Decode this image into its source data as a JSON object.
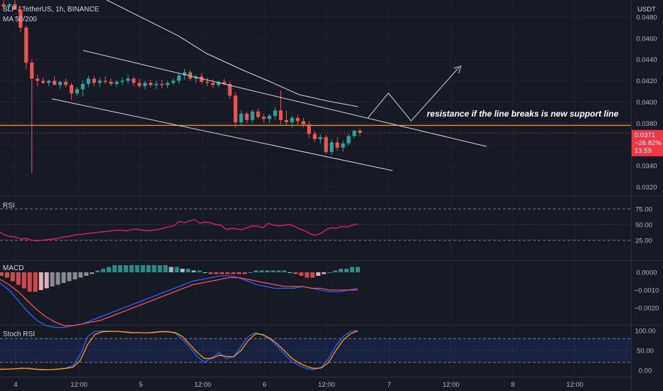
{
  "header": {
    "symbol_line": "SLP / TetherUS, 1h, BINANCE",
    "indicator": "MA 50/200",
    "currency": "USDT"
  },
  "price_axis": {
    "ticks": [
      "0.0480",
      "0.0460",
      "0.0440",
      "0.0420",
      "0.0400",
      "0.0380",
      "0.0360",
      "0.0340",
      "0.0320"
    ],
    "tick_values": [
      0.048,
      0.046,
      0.044,
      0.042,
      0.04,
      0.038,
      0.036,
      0.034,
      0.032
    ]
  },
  "last_price": {
    "price": "0.0371",
    "change": "−26.82%",
    "countdown": "13:59",
    "value": 0.0371
  },
  "annotation": {
    "text": "resistance if the line breaks is new support line",
    "level": 0.0378
  },
  "time_axis": [
    "4",
    "12:00",
    "5",
    "12:00",
    "6",
    "12:00",
    "7",
    "12:00",
    "8",
    "12:00"
  ],
  "rsi": {
    "label": "RSI",
    "ticks": [
      "75.00",
      "50.00",
      "25.00"
    ],
    "tick_values": [
      75,
      50,
      25
    ]
  },
  "macd": {
    "label": "MACD",
    "ticks": [
      "0.0000",
      "−0.0010",
      "−0.0020"
    ],
    "tick_values": [
      0,
      -0.001,
      -0.002
    ]
  },
  "stoch": {
    "label": "Stoch RSI",
    "ticks": [
      "100.00",
      "50.00",
      "0.00"
    ],
    "tick_values": [
      100,
      50,
      0
    ]
  },
  "colors": {
    "background": "#161a25",
    "up": "#26a69a",
    "down": "#ef5350",
    "rsi": "#e91e63",
    "macd": "#2962ff",
    "signal": "#ff6d00",
    "stoch_k": "#2962ff",
    "stoch_d": "#ff9800",
    "level": "#ff9800",
    "price_label": "#f23645"
  },
  "chart_data": {
    "type": "candlestick",
    "ylim": [
      0.0312,
      0.0496
    ],
    "candles_ohlc": [
      [
        0.0492,
        0.0496,
        0.0486,
        0.049
      ],
      [
        0.049,
        0.0494,
        0.0488,
        0.0492
      ],
      [
        0.0492,
        0.0498,
        0.0489,
        0.0487
      ],
      [
        0.0487,
        0.049,
        0.0466,
        0.047
      ],
      [
        0.047,
        0.0472,
        0.0431,
        0.0437
      ],
      [
        0.0437,
        0.044,
        0.0333,
        0.0422
      ],
      [
        0.0422,
        0.0426,
        0.0415,
        0.042
      ],
      [
        0.042,
        0.0423,
        0.0417,
        0.0418
      ],
      [
        0.0418,
        0.0421,
        0.0415,
        0.042
      ],
      [
        0.042,
        0.0424,
        0.0418,
        0.0416
      ],
      [
        0.0416,
        0.042,
        0.0412,
        0.0419
      ],
      [
        0.0419,
        0.0422,
        0.0414,
        0.0416
      ],
      [
        0.0416,
        0.0418,
        0.0402,
        0.0408
      ],
      [
        0.0408,
        0.0414,
        0.0406,
        0.0412
      ],
      [
        0.0412,
        0.042,
        0.0405,
        0.0417
      ],
      [
        0.0417,
        0.0425,
        0.0414,
        0.0422
      ],
      [
        0.0422,
        0.0425,
        0.0415,
        0.0418
      ],
      [
        0.0418,
        0.0423,
        0.0414,
        0.042
      ],
      [
        0.042,
        0.0424,
        0.0417,
        0.0419
      ],
      [
        0.0419,
        0.0422,
        0.0415,
        0.0417
      ],
      [
        0.0417,
        0.0421,
        0.0414,
        0.0419
      ],
      [
        0.0419,
        0.0423,
        0.0416,
        0.042
      ],
      [
        0.042,
        0.0426,
        0.0417,
        0.0422
      ],
      [
        0.0422,
        0.0424,
        0.0415,
        0.0418
      ],
      [
        0.0418,
        0.0422,
        0.0413,
        0.0415
      ],
      [
        0.0415,
        0.042,
        0.0412,
        0.0418
      ],
      [
        0.0418,
        0.0421,
        0.0414,
        0.0416
      ],
      [
        0.0416,
        0.042,
        0.0412,
        0.0417
      ],
      [
        0.0417,
        0.0421,
        0.0413,
        0.0416
      ],
      [
        0.0416,
        0.042,
        0.0413,
        0.0418
      ],
      [
        0.0418,
        0.0422,
        0.0416,
        0.042
      ],
      [
        0.042,
        0.0427,
        0.0417,
        0.0425
      ],
      [
        0.0425,
        0.0431,
        0.0421,
        0.0428
      ],
      [
        0.0428,
        0.043,
        0.042,
        0.0422
      ],
      [
        0.0422,
        0.0426,
        0.0418,
        0.0424
      ],
      [
        0.0424,
        0.0427,
        0.0417,
        0.0419
      ],
      [
        0.0419,
        0.0423,
        0.0415,
        0.0418
      ],
      [
        0.0418,
        0.0421,
        0.0413,
        0.0416
      ],
      [
        0.0416,
        0.042,
        0.0414,
        0.0419
      ],
      [
        0.0419,
        0.0422,
        0.0416,
        0.0417
      ],
      [
        0.0417,
        0.0419,
        0.0403,
        0.0406
      ],
      [
        0.0406,
        0.0409,
        0.0376,
        0.0381
      ],
      [
        0.0381,
        0.0392,
        0.0378,
        0.0389
      ],
      [
        0.0389,
        0.0391,
        0.038,
        0.0383
      ],
      [
        0.0383,
        0.0393,
        0.038,
        0.0391
      ],
      [
        0.0391,
        0.0394,
        0.0384,
        0.0386
      ],
      [
        0.0386,
        0.0389,
        0.0381,
        0.0384
      ],
      [
        0.0384,
        0.0389,
        0.038,
        0.0387
      ],
      [
        0.0387,
        0.0395,
        0.0383,
        0.0392
      ],
      [
        0.0392,
        0.0411,
        0.0379,
        0.0383
      ],
      [
        0.0383,
        0.0392,
        0.0378,
        0.0381
      ],
      [
        0.0381,
        0.0387,
        0.0376,
        0.0385
      ],
      [
        0.0385,
        0.0388,
        0.0379,
        0.0382
      ],
      [
        0.0382,
        0.0385,
        0.0376,
        0.0379
      ],
      [
        0.0379,
        0.0382,
        0.0366,
        0.037
      ],
      [
        0.037,
        0.0373,
        0.0362,
        0.0365
      ],
      [
        0.0365,
        0.037,
        0.0361,
        0.0367
      ],
      [
        0.0367,
        0.0369,
        0.0351,
        0.0353
      ],
      [
        0.0353,
        0.0365,
        0.035,
        0.0362
      ],
      [
        0.0362,
        0.0367,
        0.0354,
        0.0357
      ],
      [
        0.0357,
        0.0364,
        0.0353,
        0.0361
      ],
      [
        0.0361,
        0.037,
        0.0359,
        0.0368
      ],
      [
        0.0368,
        0.0374,
        0.0366,
        0.0373
      ],
      [
        0.0373,
        0.0375,
        0.0368,
        0.0371
      ]
    ],
    "ma50": [
      [
        0.0048,
        0.0496
      ],
      [
        0.05,
        0.0456
      ],
      [
        0.056,
        0.0392
      ],
      [
        0.07,
        0.0347
      ]
    ],
    "trendlines": [
      {
        "x1": 0.116,
        "y1": 0.0463,
        "x2": 0.698,
        "y2": 0.0365
      },
      {
        "x1": 0.078,
        "y1": 0.0402,
        "x2": 0.592,
        "y2": 0.034
      }
    ],
    "projection": [
      [
        0.558,
        0.0381
      ],
      [
        0.587,
        0.0407
      ],
      [
        0.622,
        0.0381
      ],
      [
        0.692,
        0.0434
      ]
    ],
    "rsi": [
      38,
      33,
      31,
      30,
      27,
      28,
      25,
      24,
      25,
      26,
      27,
      28,
      30,
      31,
      33,
      34,
      35,
      36,
      37,
      38,
      39,
      40,
      41,
      41,
      40,
      42,
      43,
      41,
      40,
      41,
      42,
      44,
      46,
      48,
      55,
      53,
      56,
      58,
      52,
      54,
      53,
      50,
      49,
      42,
      44,
      43,
      42,
      45,
      48,
      47,
      45,
      52,
      49,
      48,
      49,
      50,
      47,
      43,
      40,
      35,
      33,
      36,
      42,
      45,
      44,
      47,
      46,
      49,
      51
    ],
    "macd_hist": [
      -0.0002,
      -0.0003,
      -0.0005,
      -0.0007,
      -0.0009,
      -0.0011,
      -0.0011,
      -0.001,
      -0.0009,
      -0.0008,
      -0.0007,
      -0.0006,
      -0.0005,
      -0.0004,
      -0.0003,
      -0.0002,
      -0.0001,
      0.0001,
      0.0002,
      0.0003,
      0.0004,
      0.0004,
      0.0004,
      0.0004,
      0.0004,
      0.0004,
      0.0004,
      0.0004,
      0.0004,
      0.0004,
      0.0003,
      0.0003,
      0.0002,
      0.0002,
      0.0001,
      0.0001,
      0.0,
      -0.0001,
      -0.0001,
      -0.0001,
      -0.0001,
      -0.0001,
      -0.0001,
      -0.0001,
      0.0,
      0.0001,
      0.0001,
      0.0001,
      0.0001,
      0.0001,
      0.0001,
      0.0,
      -0.0001,
      -0.0002,
      -0.0003,
      -0.0003,
      -0.0002,
      -0.0001,
      0.0,
      0.0001,
      0.0002,
      0.0002,
      0.0003,
      0.0003
    ],
    "macd_line": [
      -0.0006,
      -0.001,
      -0.0016,
      -0.0022,
      -0.0027,
      -0.003,
      -0.0031,
      -0.0031,
      -0.003,
      -0.0029,
      -0.0027,
      -0.0025,
      -0.0023,
      -0.0021,
      -0.0019,
      -0.0017,
      -0.0015,
      -0.0013,
      -0.0011,
      -0.0009,
      -0.0007,
      -0.0005,
      -0.0004,
      -0.0003,
      -0.0002,
      -0.0002,
      -0.0003,
      -0.0005,
      -0.0007,
      -0.0008,
      -0.0009,
      -0.0009,
      -0.0009,
      -0.0008,
      -0.0009,
      -0.001,
      -0.0011,
      -0.0011,
      -0.001,
      -0.0009
    ],
    "signal_line": [
      -0.0004,
      -0.0007,
      -0.0011,
      -0.0016,
      -0.0021,
      -0.0025,
      -0.0028,
      -0.003,
      -0.003,
      -0.0029,
      -0.0028,
      -0.0027,
      -0.0025,
      -0.0023,
      -0.0021,
      -0.0019,
      -0.0017,
      -0.0015,
      -0.0013,
      -0.0011,
      -0.0009,
      -0.0007,
      -0.0006,
      -0.0005,
      -0.0004,
      -0.0003,
      -0.0003,
      -0.0004,
      -0.0005,
      -0.0006,
      -0.0007,
      -0.0008,
      -0.0008,
      -0.0008,
      -0.0009,
      -0.0009,
      -0.001,
      -0.001,
      -0.001,
      -0.001
    ],
    "stoch_k": [
      2,
      3,
      4,
      6,
      4,
      2,
      1,
      2,
      4,
      6,
      12,
      40,
      85,
      98,
      99,
      99,
      98,
      96,
      94,
      95,
      94,
      96,
      98,
      98,
      93,
      78,
      58,
      35,
      20,
      32,
      45,
      30,
      35,
      60,
      85,
      95,
      88,
      78,
      60,
      40,
      22,
      12,
      5,
      2,
      8,
      30,
      62,
      85,
      98,
      100
    ],
    "stoch_d": [
      3,
      3,
      4,
      5,
      5,
      3,
      2,
      2,
      3,
      5,
      8,
      25,
      65,
      90,
      97,
      98,
      98,
      97,
      95,
      95,
      94,
      95,
      97,
      97,
      95,
      85,
      65,
      45,
      30,
      30,
      38,
      35,
      34,
      50,
      75,
      92,
      90,
      80,
      66,
      48,
      30,
      18,
      10,
      5,
      6,
      20,
      50,
      76,
      92,
      99
    ]
  }
}
